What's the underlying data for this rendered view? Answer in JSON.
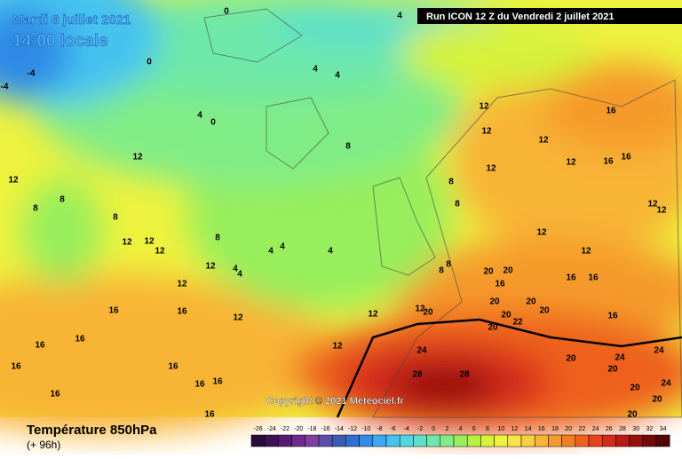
{
  "header": {
    "date": "Mardi 6 juillet 2021",
    "time": "14:00 locale"
  },
  "run": "Run ICON 12 Z du Vendredi 2 juillet 2021",
  "copyright": "Copyright © 2021 Meteociel.fr",
  "footer": {
    "title": "Température 850hPa",
    "lead": "(+ 96h)"
  },
  "contour_labels": [
    -4,
    0,
    4,
    0,
    -4,
    4,
    4,
    4,
    0,
    8,
    12,
    12,
    8,
    8,
    8,
    12,
    16,
    12,
    12,
    12,
    16,
    16,
    12,
    8,
    8,
    12,
    12,
    8,
    12,
    12,
    12,
    4,
    4,
    4,
    12,
    4,
    4,
    12,
    12,
    12,
    8,
    8,
    20,
    20,
    16,
    16,
    16,
    20,
    20,
    20,
    16,
    16,
    12,
    12,
    12,
    20,
    20,
    22,
    20,
    16,
    16,
    16,
    12,
    24,
    20,
    24,
    20,
    24,
    28,
    28,
    16,
    16,
    16,
    16,
    20,
    24,
    16,
    20,
    16,
    20
  ],
  "colorbar": {
    "ticks": [
      -26,
      -24,
      -22,
      -20,
      -18,
      -16,
      -14,
      -12,
      -10,
      -8,
      -6,
      -4,
      -2,
      0,
      2,
      4,
      6,
      8,
      10,
      12,
      14,
      16,
      18,
      20,
      22,
      24,
      26,
      28,
      30,
      32,
      34
    ],
    "colors": [
      "#2a0a3c",
      "#3e1156",
      "#571a74",
      "#6e2a8c",
      "#833fa0",
      "#5a4fa8",
      "#3c5cb4",
      "#2f6fd0",
      "#2f8ae6",
      "#3aa8f2",
      "#45c2f0",
      "#4fd6e0",
      "#5ee0c8",
      "#6ee8a8",
      "#80ec86",
      "#98ee5c",
      "#b6f040",
      "#d6f23a",
      "#eef23e",
      "#fae448",
      "#f9cf40",
      "#f8b436",
      "#f59a2c",
      "#f27e24",
      "#ee601e",
      "#e8421c",
      "#d42a1a",
      "#b81a18",
      "#961010",
      "#730a0a",
      "#520606"
    ]
  }
}
